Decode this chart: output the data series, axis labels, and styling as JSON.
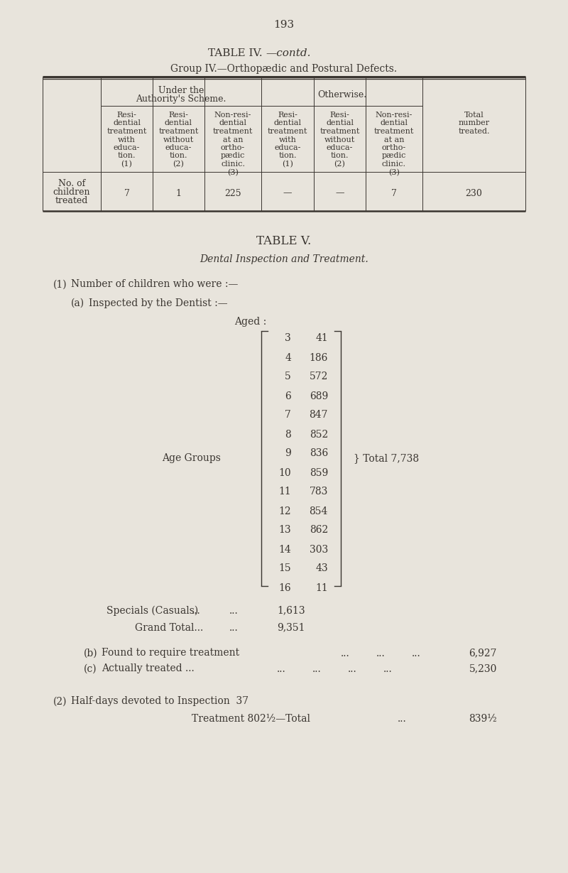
{
  "bg_color": "#e8e4dc",
  "text_color": "#3a3530",
  "page_number": "193",
  "table4_title1": "TABLE IV.",
  "table4_title2": "—contd.",
  "table4_subtitle": "Group IV.—Orthopædic and Postural Defects.",
  "table4_values": [
    "7",
    "1",
    "225",
    "—",
    "—",
    "7",
    "230"
  ],
  "table5_title": "TABLE V.",
  "table5_subtitle": "Dental Inspection and Treatment.",
  "age_data": [
    [
      "3",
      "41"
    ],
    [
      "4",
      "186"
    ],
    [
      "5",
      "572"
    ],
    [
      "6",
      "689"
    ],
    [
      "7",
      "847"
    ],
    [
      "8",
      "852"
    ],
    [
      "9",
      "836"
    ],
    [
      "10",
      "859"
    ],
    [
      "11",
      "783"
    ],
    [
      "12",
      "854"
    ],
    [
      "13",
      "862"
    ],
    [
      "14",
      "303"
    ],
    [
      "15",
      "43"
    ],
    [
      "16",
      "11"
    ]
  ]
}
